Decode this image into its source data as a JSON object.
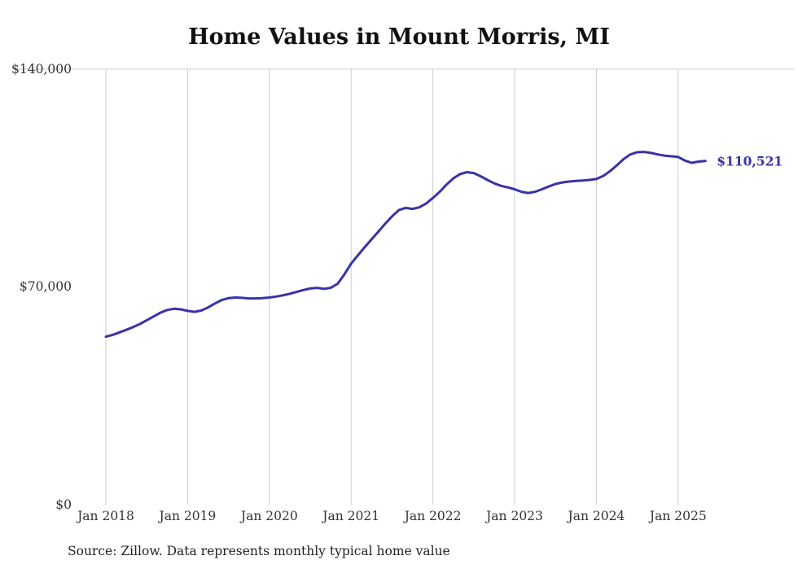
{
  "chart_data": {
    "type": "line",
    "title": "Home Values in Mount Morris, MI",
    "xlabel": "",
    "ylabel": "",
    "ylim": [
      0,
      140000
    ],
    "grid": "vertical-yearly-plus-top-rule",
    "legend_position": "none",
    "line_color": "#3833a8",
    "grid_color": "#cccccc",
    "end_label": "$110,521",
    "end_value": 110521,
    "source_note": "Source: Zillow. Data represents monthly typical home value",
    "y_ticks": [
      {
        "label": "$0",
        "value": 0
      },
      {
        "label": "$70,000",
        "value": 70000
      },
      {
        "label": "$140,000",
        "value": 140000
      }
    ],
    "x_tick_labels": [
      "Jan 2018",
      "Jan 2019",
      "Jan 2020",
      "Jan 2021",
      "Jan 2022",
      "Jan 2023",
      "Jan 2024",
      "Jan 2025"
    ],
    "x_start": "2018-01",
    "x_frequency": "monthly",
    "series": [
      {
        "name": "Typical home value",
        "values": [
          54000,
          54600,
          55400,
          56200,
          57100,
          58100,
          59300,
          60500,
          61700,
          62600,
          63000,
          62800,
          62300,
          62000,
          62400,
          63400,
          64700,
          65800,
          66400,
          66600,
          66500,
          66300,
          66300,
          66400,
          66600,
          66900,
          67300,
          67800,
          68400,
          69000,
          69500,
          69700,
          69400,
          69700,
          71000,
          74000,
          77500,
          80200,
          82800,
          85300,
          87800,
          90300,
          92700,
          94700,
          95400,
          95100,
          95600,
          96800,
          98600,
          100600,
          102900,
          104900,
          106300,
          106900,
          106600,
          105600,
          104400,
          103300,
          102500,
          102000,
          101400,
          100600,
          100200,
          100600,
          101400,
          102300,
          103100,
          103600,
          103900,
          104100,
          104200,
          104400,
          104700,
          105700,
          107200,
          109100,
          111100,
          112600,
          113300,
          113400,
          113100,
          112600,
          112200,
          112000,
          111800,
          110600,
          109900,
          110300,
          110521
        ]
      }
    ]
  }
}
